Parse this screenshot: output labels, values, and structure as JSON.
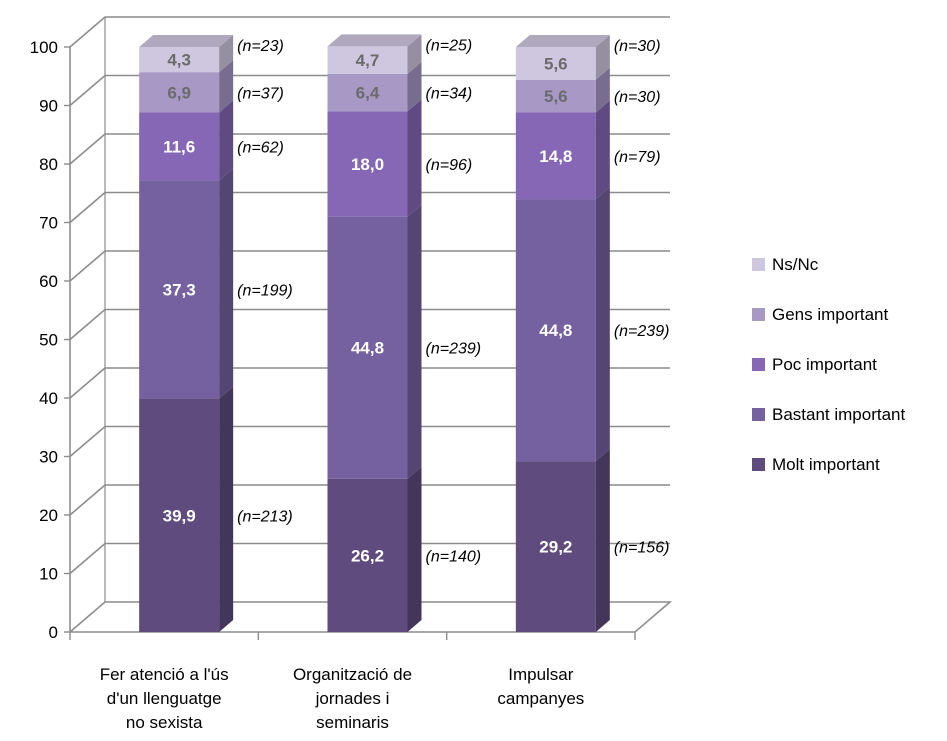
{
  "chart_data": {
    "type": "bar",
    "stacked": true,
    "three_d": true,
    "title": "",
    "xlabel": "",
    "ylabel": "",
    "ylim": [
      0,
      100
    ],
    "yticks": [
      "0",
      "10",
      "20",
      "30",
      "40",
      "50",
      "60",
      "70",
      "80",
      "90",
      "100"
    ],
    "categories": [
      [
        "Fer atenció a l'ús",
        "d'un llenguatge",
        "no sexista"
      ],
      [
        "Organització de",
        "jornades i",
        "seminaris"
      ],
      [
        "Impulsar",
        "campanyes"
      ]
    ],
    "series": [
      {
        "name": "Molt important",
        "color": "#5f4b7d",
        "values": [
          39.9,
          26.2,
          29.2
        ],
        "labels": [
          "39,9",
          "26,2",
          "29,2"
        ],
        "n": [
          "(n=213)",
          "(n=140)",
          "(n=156)"
        ]
      },
      {
        "name": "Bastant important",
        "color": "#7560a0",
        "values": [
          37.3,
          44.8,
          44.8
        ],
        "labels": [
          "37,3",
          "44,8",
          "44,8"
        ],
        "n": [
          "(n=199)",
          "(n=239)",
          "(n=239)"
        ]
      },
      {
        "name": "Poc important",
        "color": "#8667b5",
        "values": [
          11.6,
          18.0,
          14.8
        ],
        "labels": [
          "11,6",
          "18,0",
          "14,8"
        ],
        "n": [
          "(n=62)",
          "(n=96)",
          "(n=79)"
        ]
      },
      {
        "name": "Gens important",
        "color": "#a898c6",
        "values": [
          6.9,
          6.4,
          5.6
        ],
        "labels": [
          "6,9",
          "6,4",
          "5,6"
        ],
        "n": [
          "(n=37)",
          "(n=34)",
          "(n=30)"
        ]
      },
      {
        "name": "Ns/Nc",
        "color": "#cfc7e0",
        "values": [
          4.3,
          4.7,
          5.6
        ],
        "labels": [
          "4,3",
          "4,7",
          "5,6"
        ],
        "n": [
          "(n=23)",
          "(n=25)",
          "(n=30)"
        ]
      }
    ],
    "legend": {
      "position": "right",
      "order": [
        "Ns/Nc",
        "Gens important",
        "Poc important",
        "Bastant important",
        "Molt important"
      ]
    },
    "grid": true
  }
}
